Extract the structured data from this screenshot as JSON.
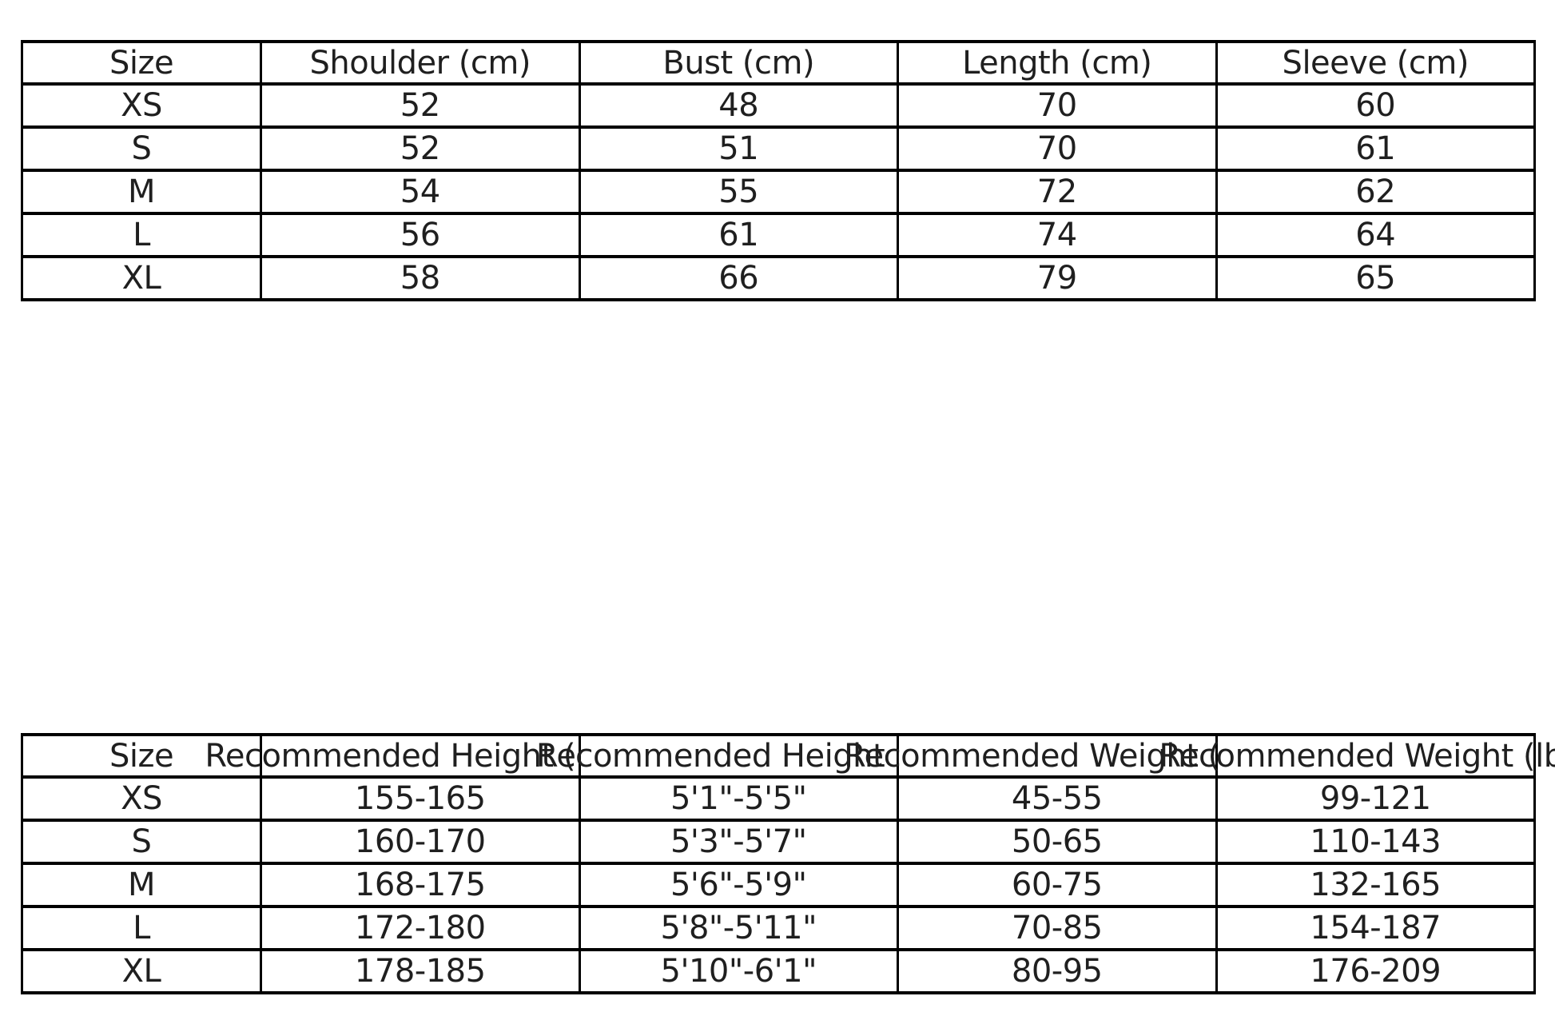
{
  "page": {
    "background": "#ffffff",
    "text_color": "#1f1f1f",
    "border_color": "#000000"
  },
  "size_table": {
    "columns": [
      "Size",
      "Shoulder (cm)",
      "Bust (cm)",
      "Length (cm)",
      "Sleeve (cm)"
    ],
    "rows": [
      [
        "XS",
        "52",
        "48",
        "70",
        "60"
      ],
      [
        "S",
        "52",
        "51",
        "70",
        "61"
      ],
      [
        "M",
        "54",
        "55",
        "72",
        "62"
      ],
      [
        "L",
        "56",
        "61",
        "74",
        "64"
      ],
      [
        "XL",
        "58",
        "66",
        "79",
        "65"
      ]
    ]
  },
  "fit_table": {
    "columns": [
      "Size",
      "Recommended Height (cm)",
      "Recommended Height (ft)",
      "Recommended Weight (kg)",
      "Recommended Weight (lbs)"
    ],
    "rows": [
      [
        "XS",
        "155-165",
        "5'1\"-5'5\"",
        "45-55",
        "99-121"
      ],
      [
        "S",
        "160-170",
        "5'3\"-5'7\"",
        "50-65",
        "110-143"
      ],
      [
        "M",
        "168-175",
        "5'6\"-5'9\"",
        "60-75",
        "132-165"
      ],
      [
        "L",
        "172-180",
        "5'8\"-5'11\"",
        "70-85",
        "154-187"
      ],
      [
        "XL",
        "178-185",
        "5'10\"-6'1\"",
        "80-95",
        "176-209"
      ]
    ]
  }
}
